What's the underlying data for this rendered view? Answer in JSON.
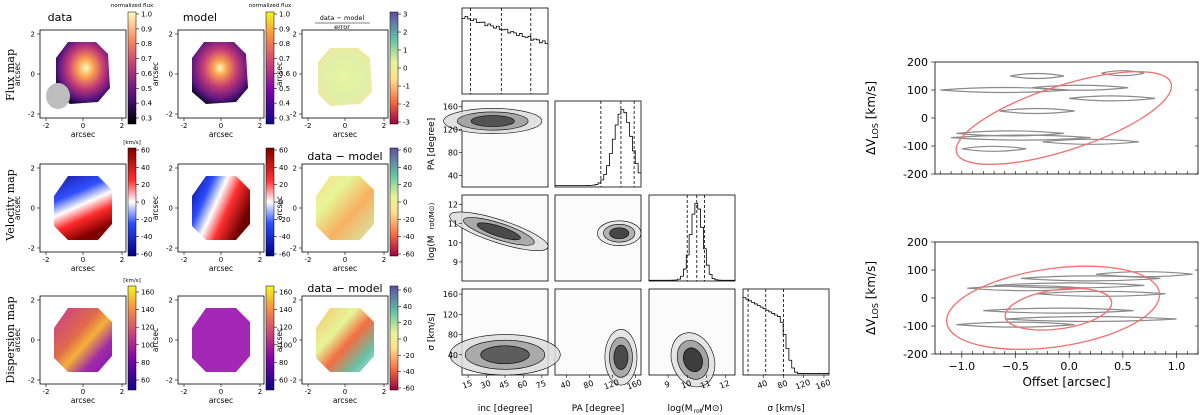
{
  "kinematic_maps": {
    "column_titles": [
      "data",
      "model"
    ],
    "residual_title_flux": "data − model",
    "residual_subtitle_flux": "error",
    "residual_title_velocity": "data − model",
    "residual_title_dispersion": "data − model",
    "row_labels": [
      "Flux map",
      "Velocity map",
      "Dispersion map"
    ],
    "xlabel": "arcsec",
    "ylabel": "arcsec",
    "axis_ticks": [
      "-2",
      "0",
      "2"
    ],
    "flux_cbar_label": "normalized flux",
    "flux_cbar_ticks": [
      "1.0",
      "0.9",
      "0.8",
      "0.7",
      "0.6",
      "0.5",
      "0.4",
      "0.3"
    ],
    "flux_resid_ticks": [
      "3",
      "2",
      "1",
      "0",
      "-1",
      "-2",
      "-3"
    ],
    "vel_cbar_label": "[km/s]",
    "vel_cbar_ticks": [
      "60",
      "40",
      "20",
      "0",
      "-20",
      "-40",
      "-60"
    ],
    "vel_resid_ticks": [
      "60",
      "40",
      "20",
      "0",
      "-20",
      "-40",
      "-60"
    ],
    "disp_cbar_label": "[km/s]",
    "disp_cbar_ticks": [
      "160",
      "140",
      "120",
      "100",
      "80",
      "60"
    ],
    "disp_resid_ticks": [
      "60",
      "40",
      "20",
      "0",
      "-20",
      "-40",
      "-60"
    ]
  },
  "chart_data": [
    {
      "type": "corner",
      "params": [
        "inc [degree]",
        "PA [degree]",
        "log(Mrot/M⊙)",
        "σ [km/s]"
      ],
      "xlabels": [
        "inc [degree]",
        "PA [degree]",
        "log(M",
        "σ [km/s]"
      ],
      "ylabels": [
        "PA [degree]",
        "log(M",
        "σ [km/s]"
      ],
      "ranges": [
        [
          10,
          80
        ],
        [
          20,
          170
        ],
        [
          8,
          12.5
        ],
        [
          0,
          170
        ]
      ],
      "ticks": {
        "inc": [
          15,
          30,
          45,
          60,
          75
        ],
        "pa": [
          40,
          80,
          120,
          160
        ],
        "logm": [
          9,
          10,
          11,
          12
        ],
        "sigma": [
          40,
          80,
          120,
          160
        ]
      },
      "quantiles": {
        "inc": [
          17,
          42,
          66
        ],
        "pa": [
          100,
          135,
          158
        ],
        "logm": [
          10.0,
          10.5,
          10.9
        ],
        "sigma": [
          10,
          45,
          80
        ]
      }
    },
    {
      "type": "line",
      "panel": "top",
      "ylabel": "ΔV",
      "ylabel_sub": "LOS",
      "ylabel_unit": "[km/s]",
      "xlim": [
        -1.25,
        1.2
      ],
      "ylim": [
        -200,
        200
      ],
      "yticks": [
        -200,
        -100,
        0,
        100,
        200
      ]
    },
    {
      "type": "line",
      "panel": "bottom",
      "ylabel": "ΔV",
      "ylabel_sub": "LOS",
      "ylabel_unit": "[km/s]",
      "xlabel": "Offset [arcsec]",
      "xlim": [
        -1.25,
        1.2
      ],
      "ylim": [
        -200,
        200
      ],
      "xticks": [
        -1.0,
        -0.5,
        0.0,
        0.5,
        1.0
      ],
      "xtick_labels": [
        "−1.0",
        "−0.5",
        "0.0",
        "0.5",
        "1.0"
      ],
      "yticks": [
        -200,
        -100,
        0,
        100,
        200
      ]
    }
  ]
}
